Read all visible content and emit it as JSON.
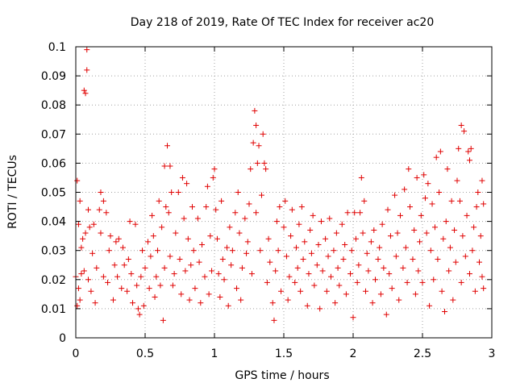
{
  "chart_data": {
    "type": "scatter",
    "title": "Day 218 of 2019, Rate Of TEC Index for receiver ac20",
    "xlabel": "GPS time / hours",
    "ylabel": "ROTI / TECUs",
    "xlim": [
      0,
      3
    ],
    "ylim": [
      0,
      0.1
    ],
    "x_ticks": [
      "0",
      "0.5",
      "1",
      "1.5",
      "2",
      "2.5",
      "3"
    ],
    "y_ticks": [
      "0",
      "0.01",
      "0.02",
      "0.03",
      "0.04",
      "0.05",
      "0.06",
      "0.07",
      "0.08",
      "0.09",
      "0.1"
    ],
    "x_tick_values": [
      0,
      0.5,
      1,
      1.5,
      2,
      2.5,
      3
    ],
    "y_tick_values": [
      0,
      0.01,
      0.02,
      0.03,
      0.04,
      0.05,
      0.06,
      0.07,
      0.08,
      0.09,
      0.1
    ],
    "grid": true,
    "marker": "+",
    "color": "#e00000",
    "series": [
      {
        "name": "ROTI",
        "points": [
          [
            0.0,
            0.021
          ],
          [
            0.01,
            0.011
          ],
          [
            0.01,
            0.054
          ],
          [
            0.02,
            0.039
          ],
          [
            0.02,
            0.017
          ],
          [
            0.03,
            0.047
          ],
          [
            0.03,
            0.013
          ],
          [
            0.04,
            0.031
          ],
          [
            0.04,
            0.022
          ],
          [
            0.05,
            0.034
          ],
          [
            0.06,
            0.085
          ],
          [
            0.06,
            0.023
          ],
          [
            0.07,
            0.084
          ],
          [
            0.07,
            0.036
          ],
          [
            0.08,
            0.092
          ],
          [
            0.08,
            0.099
          ],
          [
            0.09,
            0.044
          ],
          [
            0.09,
            0.02
          ],
          [
            0.1,
            0.038
          ],
          [
            0.11,
            0.016
          ],
          [
            0.12,
            0.029
          ],
          [
            0.13,
            0.039
          ],
          [
            0.14,
            0.012
          ],
          [
            0.15,
            0.024
          ],
          [
            0.17,
            0.044
          ],
          [
            0.18,
            0.036
          ],
          [
            0.18,
            0.05
          ],
          [
            0.2,
            0.047
          ],
          [
            0.2,
            0.021
          ],
          [
            0.22,
            0.043
          ],
          [
            0.23,
            0.019
          ],
          [
            0.24,
            0.03
          ],
          [
            0.25,
            0.035
          ],
          [
            0.27,
            0.013
          ],
          [
            0.28,
            0.025
          ],
          [
            0.29,
            0.033
          ],
          [
            0.3,
            0.021
          ],
          [
            0.31,
            0.034
          ],
          [
            0.33,
            0.017
          ],
          [
            0.34,
            0.031
          ],
          [
            0.35,
            0.025
          ],
          [
            0.37,
            0.016
          ],
          [
            0.38,
            0.027
          ],
          [
            0.39,
            0.04
          ],
          [
            0.4,
            0.022
          ],
          [
            0.41,
            0.012
          ],
          [
            0.43,
            0.039
          ],
          [
            0.44,
            0.018
          ],
          [
            0.45,
            0.01
          ],
          [
            0.46,
            0.008
          ],
          [
            0.47,
            0.021
          ],
          [
            0.48,
            0.03
          ],
          [
            0.49,
            0.011
          ],
          [
            0.5,
            0.024
          ],
          [
            0.52,
            0.033
          ],
          [
            0.53,
            0.017
          ],
          [
            0.54,
            0.028
          ],
          [
            0.55,
            0.042
          ],
          [
            0.56,
            0.035
          ],
          [
            0.57,
            0.014
          ],
          [
            0.58,
            0.021
          ],
          [
            0.59,
            0.03
          ],
          [
            0.6,
            0.047
          ],
          [
            0.61,
            0.018
          ],
          [
            0.62,
            0.038
          ],
          [
            0.63,
            0.006
          ],
          [
            0.64,
            0.024
          ],
          [
            0.64,
            0.059
          ],
          [
            0.65,
            0.045
          ],
          [
            0.66,
            0.066
          ],
          [
            0.67,
            0.043
          ],
          [
            0.68,
            0.059
          ],
          [
            0.68,
            0.028
          ],
          [
            0.69,
            0.05
          ],
          [
            0.7,
            0.018
          ],
          [
            0.71,
            0.022
          ],
          [
            0.72,
            0.036
          ],
          [
            0.74,
            0.05
          ],
          [
            0.75,
            0.027
          ],
          [
            0.76,
            0.015
          ],
          [
            0.77,
            0.055
          ],
          [
            0.78,
            0.041
          ],
          [
            0.79,
            0.023
          ],
          [
            0.8,
            0.053
          ],
          [
            0.81,
            0.034
          ],
          [
            0.82,
            0.013
          ],
          [
            0.83,
            0.025
          ],
          [
            0.84,
            0.045
          ],
          [
            0.85,
            0.03
          ],
          [
            0.86,
            0.017
          ],
          [
            0.88,
            0.041
          ],
          [
            0.89,
            0.026
          ],
          [
            0.9,
            0.012
          ],
          [
            0.91,
            0.032
          ],
          [
            0.93,
            0.021
          ],
          [
            0.94,
            0.045
          ],
          [
            0.95,
            0.052
          ],
          [
            0.96,
            0.015
          ],
          [
            0.97,
            0.035
          ],
          [
            0.98,
            0.023
          ],
          [
            0.99,
            0.055
          ],
          [
            1.0,
            0.058
          ],
          [
            1.01,
            0.044
          ],
          [
            1.02,
            0.034
          ],
          [
            1.03,
            0.022
          ],
          [
            1.04,
            0.014
          ],
          [
            1.05,
            0.047
          ],
          [
            1.06,
            0.027
          ],
          [
            1.07,
            0.02
          ],
          [
            1.09,
            0.031
          ],
          [
            1.1,
            0.011
          ],
          [
            1.11,
            0.038
          ],
          [
            1.12,
            0.025
          ],
          [
            1.13,
            0.03
          ],
          [
            1.15,
            0.043
          ],
          [
            1.16,
            0.017
          ],
          [
            1.17,
            0.05
          ],
          [
            1.18,
            0.036
          ],
          [
            1.19,
            0.013
          ],
          [
            1.2,
            0.024
          ],
          [
            1.22,
            0.041
          ],
          [
            1.23,
            0.029
          ],
          [
            1.24,
            0.033
          ],
          [
            1.25,
            0.046
          ],
          [
            1.26,
            0.058
          ],
          [
            1.27,
            0.022
          ],
          [
            1.28,
            0.067
          ],
          [
            1.29,
            0.078
          ],
          [
            1.3,
            0.073
          ],
          [
            1.3,
            0.043
          ],
          [
            1.31,
            0.06
          ],
          [
            1.32,
            0.066
          ],
          [
            1.33,
            0.03
          ],
          [
            1.34,
            0.049
          ],
          [
            1.35,
            0.07
          ],
          [
            1.36,
            0.06
          ],
          [
            1.37,
            0.058
          ],
          [
            1.38,
            0.019
          ],
          [
            1.39,
            0.034
          ],
          [
            1.4,
            0.026
          ],
          [
            1.42,
            0.012
          ],
          [
            1.43,
            0.006
          ],
          [
            1.44,
            0.023
          ],
          [
            1.45,
            0.04
          ],
          [
            1.46,
            0.03
          ],
          [
            1.47,
            0.045
          ],
          [
            1.48,
            0.016
          ],
          [
            1.5,
            0.038
          ],
          [
            1.51,
            0.047
          ],
          [
            1.52,
            0.028
          ],
          [
            1.53,
            0.013
          ],
          [
            1.54,
            0.021
          ],
          [
            1.55,
            0.035
          ],
          [
            1.56,
            0.044
          ],
          [
            1.58,
            0.019
          ],
          [
            1.59,
            0.031
          ],
          [
            1.6,
            0.024
          ],
          [
            1.61,
            0.039
          ],
          [
            1.62,
            0.016
          ],
          [
            1.63,
            0.045
          ],
          [
            1.64,
            0.027
          ],
          [
            1.65,
            0.033
          ],
          [
            1.67,
            0.011
          ],
          [
            1.68,
            0.022
          ],
          [
            1.69,
            0.037
          ],
          [
            1.7,
            0.029
          ],
          [
            1.71,
            0.042
          ],
          [
            1.72,
            0.018
          ],
          [
            1.74,
            0.025
          ],
          [
            1.75,
            0.032
          ],
          [
            1.76,
            0.01
          ],
          [
            1.77,
            0.04
          ],
          [
            1.78,
            0.023
          ],
          [
            1.8,
            0.034
          ],
          [
            1.81,
            0.016
          ],
          [
            1.82,
            0.028
          ],
          [
            1.83,
            0.041
          ],
          [
            1.84,
            0.021
          ],
          [
            1.86,
            0.03
          ],
          [
            1.87,
            0.012
          ],
          [
            1.88,
            0.036
          ],
          [
            1.89,
            0.024
          ],
          [
            1.9,
            0.018
          ],
          [
            1.92,
            0.039
          ],
          [
            1.93,
            0.027
          ],
          [
            1.94,
            0.032
          ],
          [
            1.95,
            0.015
          ],
          [
            1.96,
            0.043
          ],
          [
            1.98,
            0.022
          ],
          [
            1.99,
            0.03
          ],
          [
            2.0,
            0.007
          ],
          [
            2.01,
            0.043
          ],
          [
            2.02,
            0.034
          ],
          [
            2.03,
            0.019
          ],
          [
            2.04,
            0.025
          ],
          [
            2.05,
            0.043
          ],
          [
            2.06,
            0.055
          ],
          [
            2.07,
            0.036
          ],
          [
            2.08,
            0.047
          ],
          [
            2.09,
            0.016
          ],
          [
            2.1,
            0.029
          ],
          [
            2.11,
            0.023
          ],
          [
            2.13,
            0.033
          ],
          [
            2.14,
            0.012
          ],
          [
            2.15,
            0.037
          ],
          [
            2.16,
            0.02
          ],
          [
            2.18,
            0.027
          ],
          [
            2.19,
            0.031
          ],
          [
            2.2,
            0.015
          ],
          [
            2.21,
            0.039
          ],
          [
            2.22,
            0.024
          ],
          [
            2.24,
            0.008
          ],
          [
            2.25,
            0.044
          ],
          [
            2.26,
            0.022
          ],
          [
            2.27,
            0.035
          ],
          [
            2.28,
            0.017
          ],
          [
            2.3,
            0.049
          ],
          [
            2.31,
            0.028
          ],
          [
            2.32,
            0.036
          ],
          [
            2.33,
            0.013
          ],
          [
            2.34,
            0.042
          ],
          [
            2.36,
            0.024
          ],
          [
            2.37,
            0.051
          ],
          [
            2.38,
            0.031
          ],
          [
            2.39,
            0.019
          ],
          [
            2.4,
            0.058
          ],
          [
            2.41,
            0.045
          ],
          [
            2.43,
            0.027
          ],
          [
            2.44,
            0.037
          ],
          [
            2.45,
            0.015
          ],
          [
            2.46,
            0.055
          ],
          [
            2.47,
            0.023
          ],
          [
            2.48,
            0.033
          ],
          [
            2.49,
            0.042
          ],
          [
            2.5,
            0.019
          ],
          [
            2.51,
            0.056
          ],
          [
            2.52,
            0.048
          ],
          [
            2.53,
            0.036
          ],
          [
            2.54,
            0.053
          ],
          [
            2.55,
            0.011
          ],
          [
            2.56,
            0.03
          ],
          [
            2.57,
            0.046
          ],
          [
            2.58,
            0.02
          ],
          [
            2.59,
            0.038
          ],
          [
            2.6,
            0.062
          ],
          [
            2.61,
            0.027
          ],
          [
            2.62,
            0.05
          ],
          [
            2.63,
            0.064
          ],
          [
            2.64,
            0.016
          ],
          [
            2.65,
            0.034
          ],
          [
            2.66,
            0.009
          ],
          [
            2.67,
            0.04
          ],
          [
            2.68,
            0.058
          ],
          [
            2.69,
            0.023
          ],
          [
            2.7,
            0.031
          ],
          [
            2.71,
            0.047
          ],
          [
            2.72,
            0.013
          ],
          [
            2.73,
            0.037
          ],
          [
            2.74,
            0.026
          ],
          [
            2.75,
            0.054
          ],
          [
            2.76,
            0.065
          ],
          [
            2.77,
            0.047
          ],
          [
            2.78,
            0.073
          ],
          [
            2.78,
            0.019
          ],
          [
            2.79,
            0.035
          ],
          [
            2.8,
            0.071
          ],
          [
            2.81,
            0.028
          ],
          [
            2.82,
            0.042
          ],
          [
            2.83,
            0.064
          ],
          [
            2.84,
            0.061
          ],
          [
            2.84,
            0.022
          ],
          [
            2.85,
            0.065
          ],
          [
            2.86,
            0.03
          ],
          [
            2.87,
            0.038
          ],
          [
            2.88,
            0.016
          ],
          [
            2.89,
            0.045
          ],
          [
            2.9,
            0.05
          ],
          [
            2.91,
            0.026
          ],
          [
            2.92,
            0.035
          ],
          [
            2.93,
            0.054
          ],
          [
            2.93,
            0.021
          ],
          [
            2.94,
            0.046
          ],
          [
            2.94,
            0.017
          ]
        ]
      }
    ]
  }
}
